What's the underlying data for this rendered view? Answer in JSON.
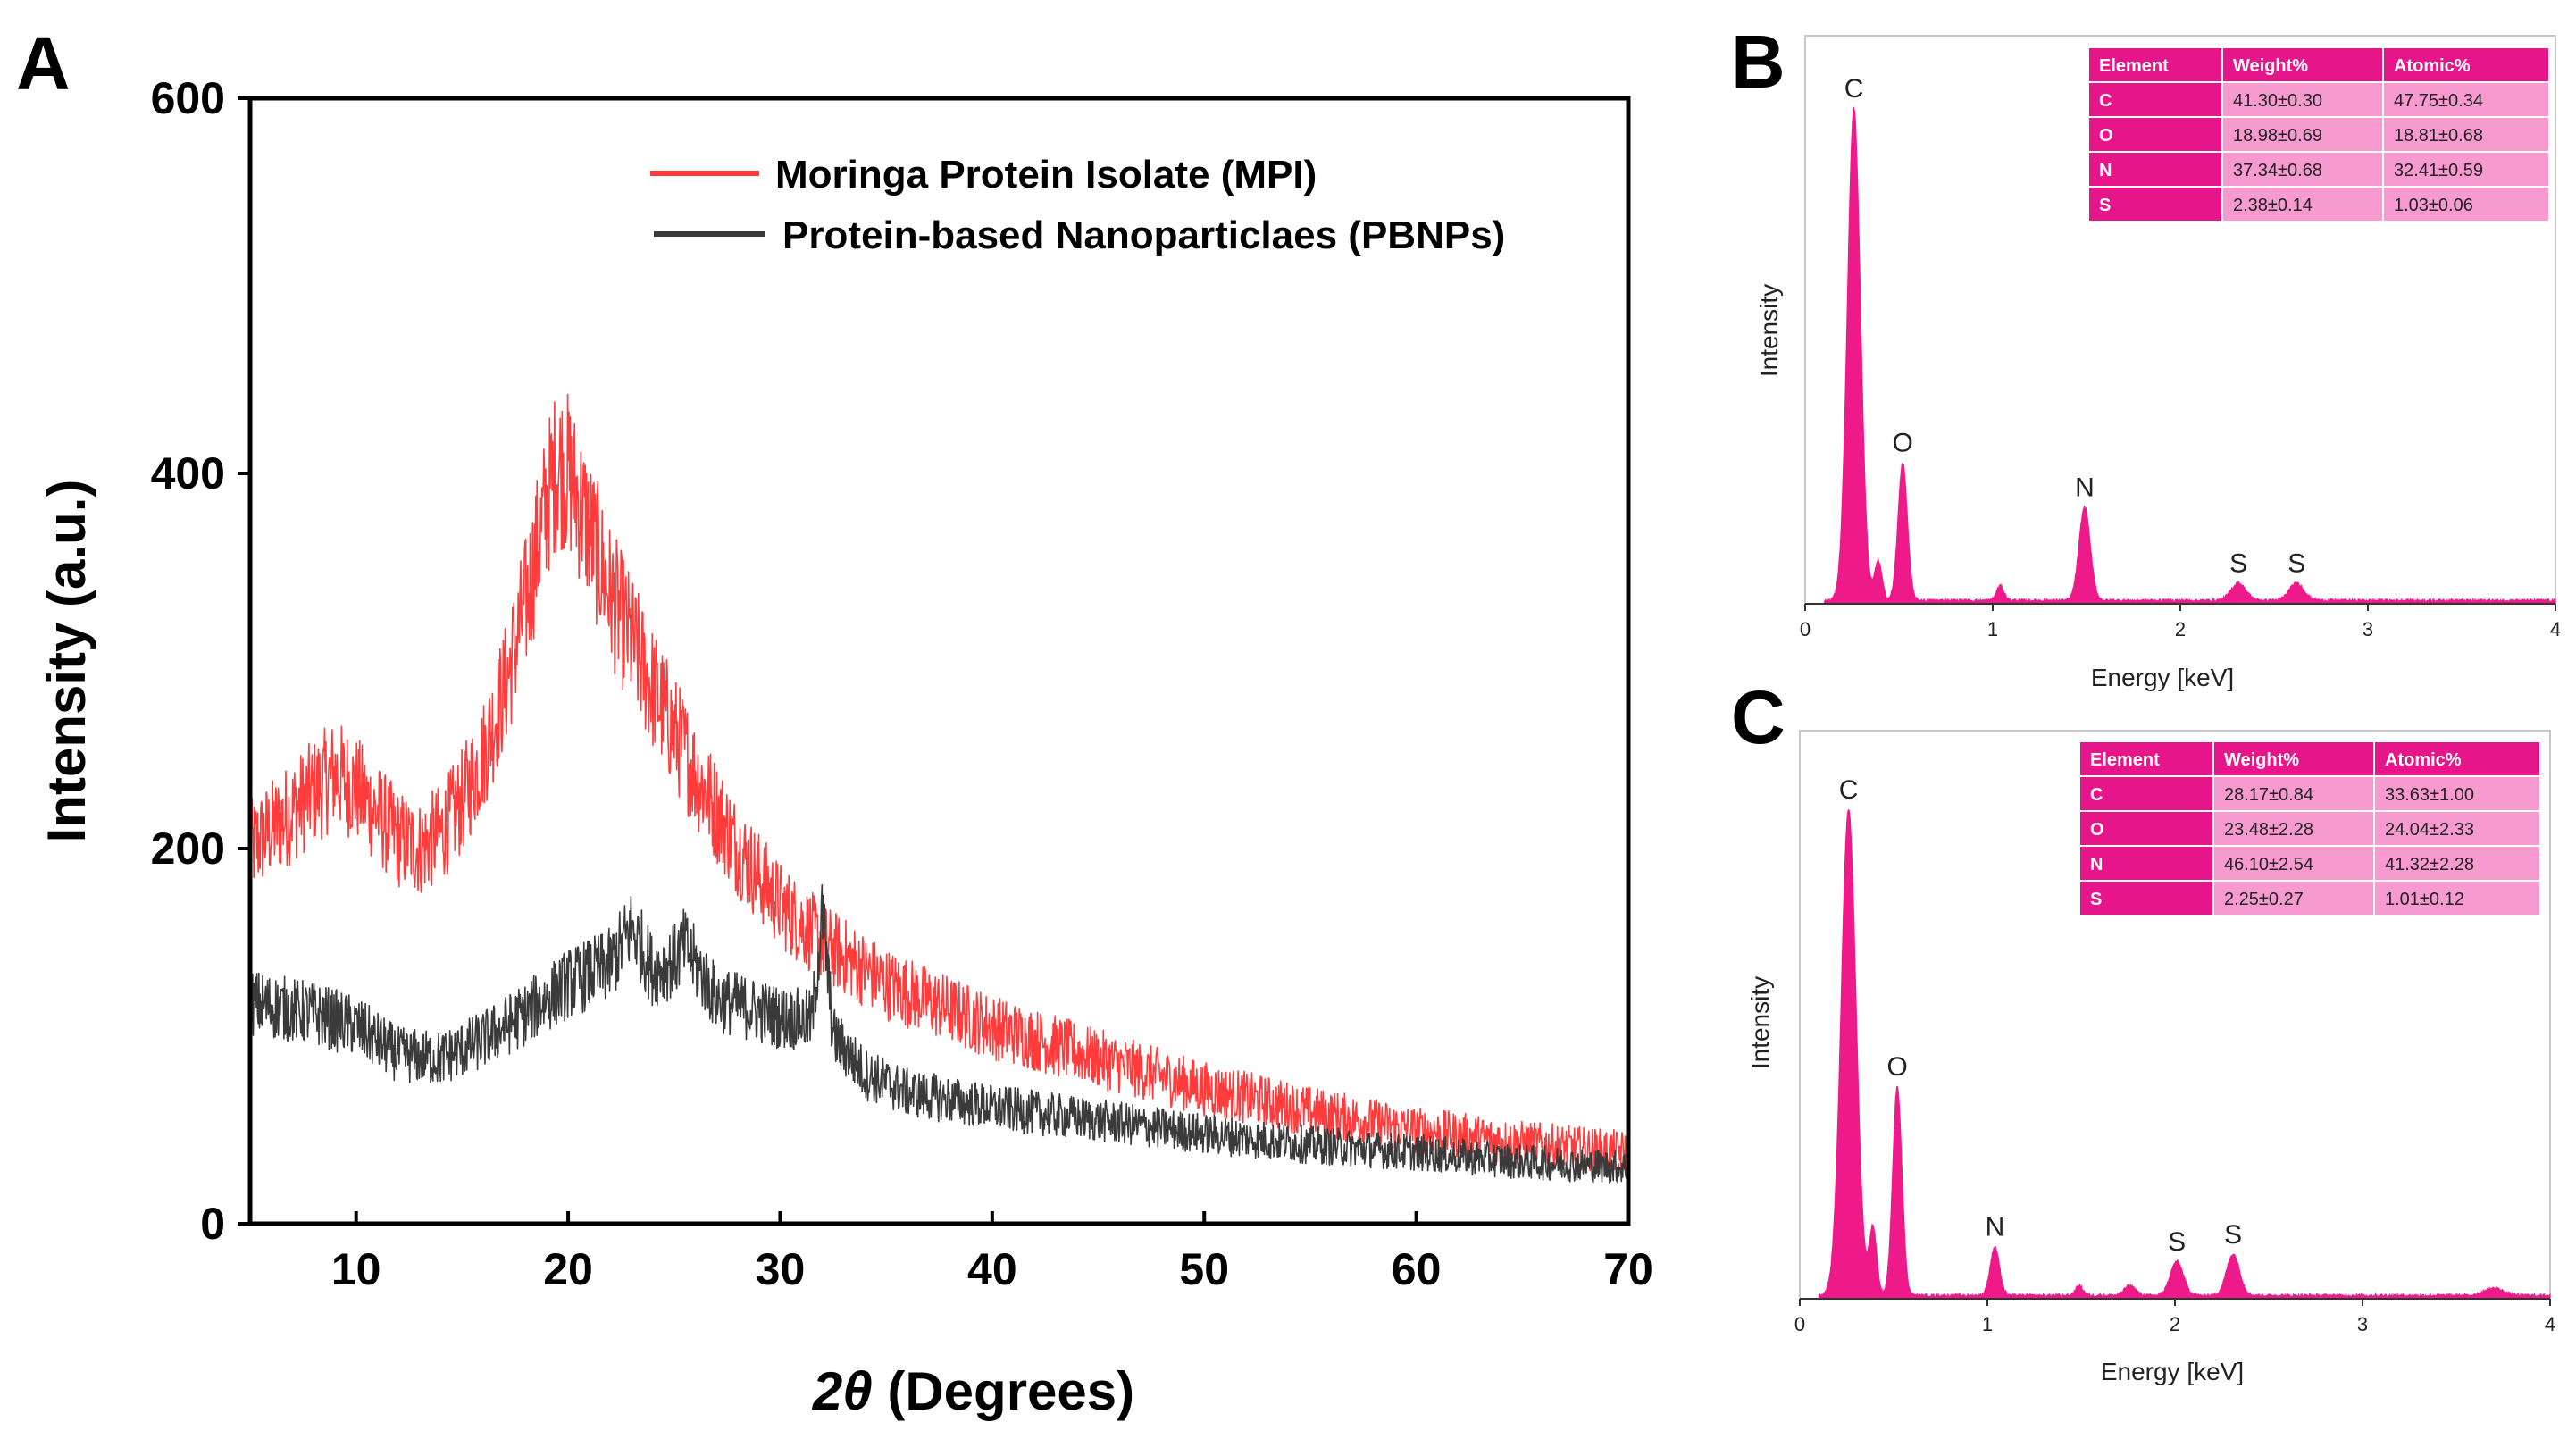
{
  "panel_labels": {
    "a": "A",
    "b": "B",
    "c": "C"
  },
  "colors": {
    "mpi": "#ff3b3b",
    "pbnp": "#3a3a3a",
    "eds": "#ee1a8a",
    "table_dark": "#e6158a",
    "table_light": "#f79ad0"
  },
  "chart_data": [
    {
      "id": "A",
      "type": "line",
      "title": "",
      "xlabel": "2θ (Degrees)",
      "xlabel_math": "2θ",
      "xlabel_rest": " (Degrees)",
      "ylabel": "Intensity (a.u.)",
      "xlim": [
        5,
        70
      ],
      "ylim": [
        0,
        600
      ],
      "xticks": [
        10,
        20,
        30,
        40,
        50,
        60,
        70
      ],
      "xtick_labels": [
        "10",
        "20",
        "30",
        "40",
        "50",
        "60",
        "70"
      ],
      "yticks": [
        0,
        200,
        400,
        600
      ],
      "ytick_labels": [
        "0",
        "200",
        "400",
        "600"
      ],
      "legend_position": "top-center",
      "series": [
        {
          "name": "Moringa Protein Isolate (MPI)",
          "color": "#ff3b3b",
          "x": [
            5,
            7,
            9,
            10,
            12,
            13,
            14,
            15,
            16,
            17,
            18,
            19,
            19.5,
            20,
            21,
            22,
            24,
            26,
            28,
            30,
            32,
            35,
            40,
            45,
            50,
            55,
            60,
            65,
            70
          ],
          "y": [
            200,
            220,
            240,
            232,
            205,
            200,
            208,
            225,
            250,
            285,
            330,
            385,
            405,
            400,
            370,
            335,
            285,
            240,
            200,
            170,
            150,
            128,
            105,
            88,
            72,
            60,
            50,
            43,
            38
          ]
        },
        {
          "name": "Protein-based Nanoparticlaes (PBNPs)",
          "color": "#3a3a3a",
          "x": [
            5,
            8,
            10,
            12,
            14,
            16,
            18,
            20,
            22,
            23,
            24,
            25,
            25.5,
            27,
            30,
            31.5,
            32,
            32.5,
            34,
            36,
            40,
            45,
            50,
            55,
            60,
            65,
            70
          ],
          "y": [
            118,
            112,
            105,
            90,
            88,
            98,
            112,
            128,
            138,
            158,
            135,
            140,
            148,
            120,
            110,
            108,
            165,
            100,
            80,
            70,
            62,
            55,
            48,
            42,
            38,
            33,
            30
          ]
        }
      ]
    },
    {
      "id": "B",
      "type": "area",
      "title": "",
      "xlabel": "Energy [keV]",
      "ylabel": "Intensity",
      "xlim": [
        0,
        4
      ],
      "xticks": [
        0,
        1,
        2,
        3,
        4
      ],
      "xtick_labels": [
        "0",
        "1",
        "2",
        "3",
        "4"
      ],
      "peaks": [
        {
          "label": "C",
          "x": 0.26,
          "height": 1.0,
          "width": 0.035
        },
        {
          "label": "",
          "x": 0.39,
          "height": 0.08,
          "width": 0.02
        },
        {
          "label": "O",
          "x": 0.52,
          "height": 0.28,
          "width": 0.025
        },
        {
          "label": "",
          "x": 1.04,
          "height": 0.03,
          "width": 0.02
        },
        {
          "label": "N",
          "x": 1.49,
          "height": 0.19,
          "width": 0.03
        },
        {
          "label": "S",
          "x": 2.31,
          "height": 0.035,
          "width": 0.04
        },
        {
          "label": "S",
          "x": 2.62,
          "height": 0.035,
          "width": 0.04
        }
      ],
      "table": {
        "headers": [
          "Element",
          "Weight%",
          "Atomic%"
        ],
        "rows": [
          [
            "C",
            "41.30±0.30",
            "47.75±0.34"
          ],
          [
            "O",
            "18.98±0.69",
            "18.81±0.68"
          ],
          [
            "N",
            "37.34±0.68",
            "32.41±0.59"
          ],
          [
            "S",
            "2.38±0.14",
            "1.03±0.06"
          ]
        ]
      }
    },
    {
      "id": "C",
      "type": "area",
      "title": "",
      "xlabel": "Energy [keV]",
      "ylabel": "Intensity",
      "xlim": [
        0,
        4
      ],
      "xticks": [
        0,
        1,
        2,
        3,
        4
      ],
      "xtick_labels": [
        "0",
        "1",
        "2",
        "3",
        "4"
      ],
      "peaks": [
        {
          "label": "C",
          "x": 0.26,
          "height": 1.0,
          "width": 0.04
        },
        {
          "label": "",
          "x": 0.39,
          "height": 0.14,
          "width": 0.02
        },
        {
          "label": "O",
          "x": 0.52,
          "height": 0.43,
          "width": 0.025
        },
        {
          "label": "N",
          "x": 1.04,
          "height": 0.1,
          "width": 0.025
        },
        {
          "label": "",
          "x": 1.49,
          "height": 0.02,
          "width": 0.02
        },
        {
          "label": "",
          "x": 1.76,
          "height": 0.02,
          "width": 0.03
        },
        {
          "label": "S",
          "x": 2.01,
          "height": 0.07,
          "width": 0.035
        },
        {
          "label": "S",
          "x": 2.31,
          "height": 0.085,
          "width": 0.035
        },
        {
          "label": "",
          "x": 3.7,
          "height": 0.015,
          "width": 0.05
        }
      ],
      "table": {
        "headers": [
          "Element",
          "Weight%",
          "Atomic%"
        ],
        "rows": [
          [
            "C",
            "28.17±0.84",
            "33.63±1.00"
          ],
          [
            "O",
            "23.48±2.28",
            "24.04±2.33"
          ],
          [
            "N",
            "46.10±2.54",
            "41.32±2.28"
          ],
          [
            "S",
            "2.25±0.27",
            "1.01±0.12"
          ]
        ]
      }
    }
  ]
}
